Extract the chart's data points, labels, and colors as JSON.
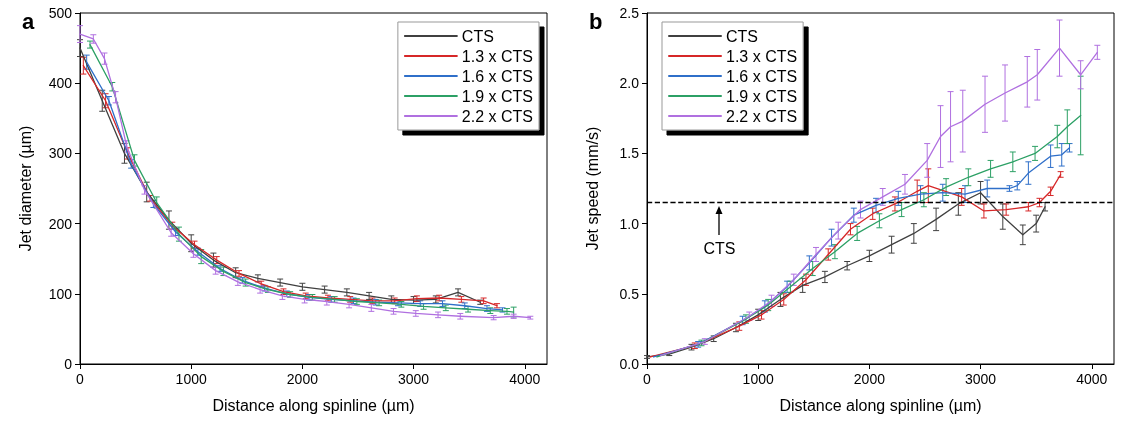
{
  "chart_data": [
    {
      "type": "line",
      "title": "a",
      "xlabel": "Distance along spinline (µm)",
      "ylabel": "Jet diameter (µm)",
      "xlim": [
        0,
        4200
      ],
      "xticks": [
        0,
        1000,
        2000,
        3000,
        4000
      ],
      "ylim": [
        0,
        500
      ],
      "yticks": [
        0,
        100,
        200,
        300,
        400,
        500
      ],
      "grid": false,
      "legend": "top right",
      "marker": "none",
      "line_style": "solid",
      "series": [
        {
          "name": "CTS",
          "color": "#404040",
          "x": [
            0,
            200,
            400,
            600,
            800,
            1000,
            1200,
            1400,
            1600,
            1800,
            2000,
            2200,
            2400,
            2600,
            2800,
            3000,
            3200,
            3400,
            3600
          ],
          "values": [
            450,
            375,
            300,
            245,
            205,
            172,
            148,
            130,
            122,
            116,
            110,
            106,
            102,
            97,
            92,
            91,
            92,
            102,
            88
          ],
          "errors": [
            12,
            15,
            14,
            14,
            13,
            12,
            10,
            7,
            5,
            5,
            5,
            5,
            5,
            5,
            5,
            5,
            5,
            5,
            3
          ]
        },
        {
          "name": "1.3 x CTS",
          "color": "#d62728",
          "x": [
            30,
            230,
            430,
            630,
            830,
            1030,
            1230,
            1430,
            1630,
            1830,
            2030,
            2230,
            2430,
            2630,
            2830,
            3030,
            3230,
            3430,
            3630,
            3750
          ],
          "values": [
            425,
            375,
            300,
            236,
            197,
            170,
            148,
            129,
            114,
            103,
            97,
            94,
            92,
            90,
            90,
            93,
            94,
            92,
            90,
            83
          ],
          "errors": [
            12,
            10,
            8,
            4,
            5,
            5,
            5,
            4,
            4,
            4,
            4,
            4,
            4,
            4,
            4,
            4,
            4,
            4,
            4,
            3
          ]
        },
        {
          "name": "1.6 x CTS",
          "color": "#2f6fc9",
          "x": [
            60,
            260,
            460,
            660,
            860,
            1060,
            1260,
            1460,
            1660,
            1860,
            2060,
            2260,
            2460,
            2660,
            2860,
            3060,
            3260,
            3460,
            3660,
            3800
          ],
          "values": [
            430,
            375,
            285,
            228,
            188,
            160,
            136,
            119,
            108,
            100,
            95,
            92,
            90,
            88,
            87,
            86,
            86,
            83,
            79,
            77
          ],
          "errors": [
            10,
            6,
            6,
            5,
            5,
            5,
            4,
            4,
            4,
            4,
            4,
            4,
            4,
            4,
            4,
            4,
            4,
            4,
            4,
            3
          ]
        },
        {
          "name": "1.9 x CTS",
          "color": "#2ca065",
          "x": [
            90,
            290,
            490,
            690,
            890,
            1090,
            1290,
            1490,
            1690,
            1890,
            2090,
            2290,
            2490,
            2690,
            2890,
            3090,
            3290,
            3490,
            3690,
            3840,
            3900
          ],
          "values": [
            455,
            395,
            290,
            230,
            185,
            153,
            132,
            116,
            106,
            99,
            95,
            92,
            89,
            87,
            85,
            82,
            80,
            78,
            76,
            75,
            74
          ],
          "errors": [
            5,
            6,
            8,
            8,
            10,
            10,
            6,
            5,
            4,
            4,
            4,
            4,
            4,
            4,
            4,
            4,
            4,
            4,
            4,
            4,
            7
          ]
        },
        {
          "name": "2.2 x CTS",
          "color": "#b070e0",
          "x": [
            0,
            120,
            220,
            320,
            420,
            580,
            820,
            1020,
            1220,
            1420,
            1620,
            1820,
            2020,
            2220,
            2420,
            2620,
            2820,
            3020,
            3220,
            3420,
            3720,
            3900,
            4050
          ],
          "values": [
            470,
            463,
            435,
            380,
            310,
            248,
            187,
            157,
            133,
            117,
            106,
            97,
            92,
            89,
            85,
            80,
            75,
            72,
            70,
            68,
            66,
            68,
            66
          ],
          "errors": [
            12,
            6,
            8,
            8,
            8,
            6,
            5,
            5,
            5,
            5,
            5,
            5,
            5,
            5,
            5,
            5,
            4,
            4,
            4,
            4,
            3,
            3,
            2
          ]
        }
      ]
    },
    {
      "type": "line",
      "title": "b",
      "xlabel": "Distance along spinline (µm)",
      "ylabel": "Jet speed (mm/s)",
      "xlim": [
        0,
        4200
      ],
      "xticks": [
        0,
        1000,
        2000,
        3000,
        4000
      ],
      "ylim": [
        0,
        2.5
      ],
      "yticks": [
        {
          "value": 0,
          "label": "0.0"
        },
        0.5,
        {
          "value": 1,
          "label": "1.0"
        },
        1.5,
        {
          "value": 2,
          "label": "2.0"
        },
        2.5
      ],
      "grid": false,
      "legend": "top left",
      "marker": "none",
      "line_style": "solid",
      "ref_lines": [
        {
          "axis": "y",
          "value": 1.15,
          "label": "CTS",
          "line_style": "dashed",
          "color": "#000000"
        }
      ],
      "series": [
        {
          "name": "CTS",
          "color": "#404040",
          "x": [
            0,
            200,
            400,
            600,
            800,
            1000,
            1200,
            1400,
            1600,
            1800,
            2000,
            2200,
            2400,
            2600,
            2800,
            3000,
            3200,
            3380,
            3500,
            3580
          ],
          "values": [
            0.05,
            0.07,
            0.12,
            0.18,
            0.26,
            0.35,
            0.46,
            0.56,
            0.62,
            0.7,
            0.77,
            0.85,
            0.93,
            1.03,
            1.14,
            1.22,
            1.05,
            0.92,
            1.0,
            1.12
          ],
          "errors": [
            0.01,
            0.01,
            0.02,
            0.02,
            0.03,
            0.04,
            0.05,
            0.05,
            0.04,
            0.03,
            0.04,
            0.06,
            0.07,
            0.08,
            0.08,
            0.08,
            0.09,
            0.07,
            0.06,
            0.03
          ]
        },
        {
          "name": "1.3 x CTS",
          "color": "#d62728",
          "x": [
            30,
            430,
            830,
            1030,
            1230,
            1430,
            1630,
            1830,
            2030,
            2230,
            2430,
            2530,
            2830,
            3030,
            3230,
            3430,
            3530,
            3630,
            3720
          ],
          "values": [
            0.05,
            0.13,
            0.27,
            0.35,
            0.46,
            0.6,
            0.78,
            0.96,
            1.07,
            1.14,
            1.23,
            1.27,
            1.19,
            1.09,
            1.1,
            1.12,
            1.15,
            1.23,
            1.35
          ],
          "errors": [
            null,
            0.02,
            0.03,
            0.03,
            0.04,
            0.04,
            0.04,
            0.04,
            0.04,
            0.05,
            0.08,
            0.12,
            0.06,
            0.05,
            0.04,
            0.03,
            0.03,
            0.03,
            0.02
          ]
        },
        {
          "name": "1.6 x CTS",
          "color": "#2f6fc9",
          "x": [
            60,
            460,
            860,
            1060,
            1260,
            1460,
            1660,
            1860,
            2060,
            2260,
            2460,
            2660,
            2860,
            3060,
            3260,
            3330,
            3430,
            3630,
            3730,
            3800
          ],
          "values": [
            0.05,
            0.14,
            0.31,
            0.41,
            0.55,
            0.72,
            0.9,
            1.06,
            1.13,
            1.18,
            1.21,
            1.22,
            1.21,
            1.25,
            1.25,
            1.27,
            1.36,
            1.48,
            1.49,
            1.54
          ],
          "errors": [
            null,
            0.02,
            0.03,
            0.04,
            0.04,
            0.05,
            0.06,
            0.05,
            0.05,
            0.05,
            0.06,
            0.06,
            0.06,
            0.06,
            0.02,
            0.03,
            0.08,
            0.08,
            0.08,
            0.03
          ]
        },
        {
          "name": "1.9 x CTS",
          "color": "#2ca065",
          "x": [
            90,
            490,
            890,
            1090,
            1290,
            1490,
            1690,
            1890,
            2090,
            2290,
            2490,
            2690,
            2890,
            3090,
            3290,
            3490,
            3690,
            3780,
            3900
          ],
          "values": [
            0.05,
            0.15,
            0.32,
            0.42,
            0.55,
            0.68,
            0.8,
            0.93,
            1.02,
            1.1,
            1.17,
            1.26,
            1.33,
            1.39,
            1.44,
            1.5,
            1.62,
            1.69,
            1.77
          ],
          "errors": [
            null,
            0.02,
            0.03,
            0.04,
            0.04,
            0.05,
            0.05,
            0.05,
            0.05,
            0.05,
            0.05,
            0.06,
            0.06,
            0.06,
            0.07,
            0.05,
            0.08,
            0.12,
            0.28
          ]
        },
        {
          "name": "2.2 x CTS",
          "color": "#b070e0",
          "x": [
            120,
            520,
            920,
            1120,
            1320,
            1520,
            1720,
            1920,
            2120,
            2320,
            2520,
            2640,
            2730,
            2840,
            3040,
            3220,
            3420,
            3510,
            3710,
            3900,
            4050
          ],
          "values": [
            0.06,
            0.16,
            0.34,
            0.45,
            0.6,
            0.78,
            0.95,
            1.1,
            1.19,
            1.28,
            1.45,
            1.62,
            1.69,
            1.73,
            1.85,
            1.93,
            2.01,
            2.06,
            2.25,
            2.06,
            2.22
          ],
          "errors": [
            null,
            0.02,
            0.03,
            0.04,
            0.04,
            0.05,
            0.06,
            0.06,
            0.06,
            0.07,
            0.12,
            0.22,
            0.25,
            0.22,
            0.2,
            0.2,
            0.18,
            0.18,
            0.2,
            0.1,
            0.05
          ]
        }
      ]
    }
  ]
}
